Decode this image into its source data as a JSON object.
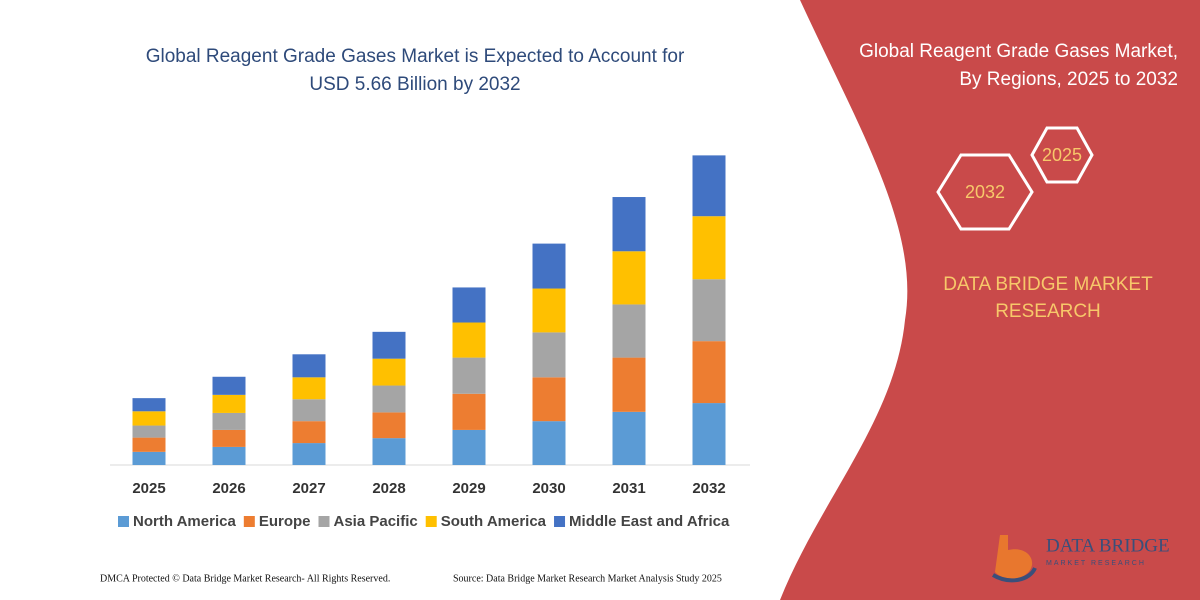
{
  "chart_data": {
    "type": "stacked-bar",
    "title": [
      "Global Reagent Grade Gases Market is Expected to Account for",
      "USD 5.66 Billion by 2032"
    ],
    "categories": [
      "2025",
      "2026",
      "2027",
      "2028",
      "2029",
      "2030",
      "2031",
      "2032"
    ],
    "series": [
      {
        "name": "North America",
        "color": "#5b9bd5",
        "values": [
          0.24,
          0.33,
          0.4,
          0.49,
          0.64,
          0.8,
          0.97,
          1.13
        ]
      },
      {
        "name": "Europe",
        "color": "#ed7d31",
        "values": [
          0.26,
          0.31,
          0.4,
          0.47,
          0.66,
          0.8,
          0.99,
          1.13
        ]
      },
      {
        "name": "Asia Pacific",
        "color": "#a5a5a5",
        "values": [
          0.22,
          0.31,
          0.4,
          0.49,
          0.66,
          0.82,
          0.97,
          1.13
        ]
      },
      {
        "name": "South America",
        "color": "#ffc000",
        "values": [
          0.26,
          0.33,
          0.4,
          0.49,
          0.64,
          0.8,
          0.97,
          1.15
        ]
      },
      {
        "name": "Middle East and Africa",
        "color": "#4472c4",
        "values": [
          0.24,
          0.33,
          0.42,
          0.49,
          0.64,
          0.82,
          0.99,
          1.11
        ]
      }
    ]
  },
  "panel": {
    "title": [
      "Global Reagent Grade Gases Market,",
      "By Regions, 2025 to 2032"
    ],
    "hexagons": [
      "2025",
      "2032"
    ],
    "brand": [
      "DATA BRIDGE MARKET",
      "RESEARCH"
    ]
  },
  "logo": {
    "name": "DATA BRIDGE",
    "tagline": "MARKET RESEARCH"
  },
  "footer": {
    "copyright": "DMCA Protected © Data Bridge Market Research-  All Rights Reserved.",
    "source": "Source: Data Bridge Market Research  Market Analysis Study 2025"
  }
}
